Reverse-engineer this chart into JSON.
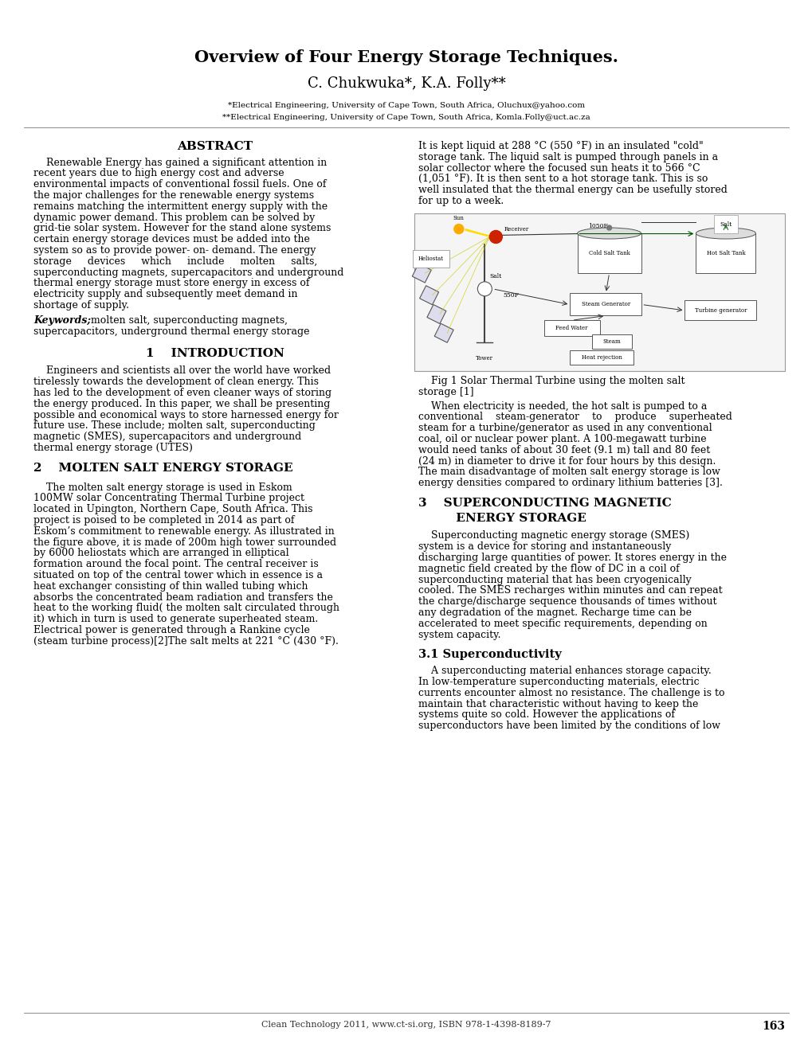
{
  "title": "Overview of Four Energy Storage Techniques.",
  "authors": "C. Chukwuka*, K.A. Folly**",
  "affil1": "*Electrical Engineering, University of Cape Town, South Africa, Oluchux@yahoo.com",
  "affil2": "**Electrical Engineering, University of Cape Town, South Africa, Komla.Folly@uct.ac.za",
  "abstract_heading": "ABSTRACT",
  "keywords_label": "Keywords;",
  "keywords_text": "molten salt, superconducting magnets, supercapacitors, underground thermal energy storage",
  "intro_heading": "1    INTRODUCTION",
  "section2_heading": "2    MOLTEN SALT ENERGY STORAGE",
  "fig_caption_line1": "    Fig 1 Solar Thermal Turbine using the molten salt",
  "fig_caption_line2": "storage [1]",
  "section3_heading1": "3    SUPERCONDUCTING MAGNETIC",
  "section3_heading2": "         ENERGY STORAGE",
  "section31_heading": "3.1 Superconductivity",
  "footer": "Clean Technology 2011, www.ct-si.org, ISBN 978-1-4398-8189-7",
  "page_number": "163",
  "bg_color": "#ffffff",
  "text_color": "#000000",
  "abstract_lines": [
    "    Renewable Energy has gained a significant attention in",
    "recent years due to high energy cost and adverse",
    "environmental impacts of conventional fossil fuels. One of",
    "the major challenges for the renewable energy systems",
    "remains matching the intermittent energy supply with the",
    "dynamic power demand. This problem can be solved by",
    "grid-tie solar system. However for the stand alone systems",
    "certain energy storage devices must be added into the",
    "system so as to provide power- on- demand. The energy",
    "storage     devices     which     include     molten     salts,",
    "superconducting magnets, supercapacitors and underground",
    "thermal energy storage must store energy in excess of",
    "electricity supply and subsequently meet demand in",
    "shortage of supply."
  ],
  "intro_lines": [
    "    Engineers and scientists all over the world have worked",
    "tirelessly towards the development of clean energy. This",
    "has led to the development of even cleaner ways of storing",
    "the energy produced. In this paper, we shall be presenting",
    "possible and economical ways to store harnessed energy for",
    "future use. These include; molten salt, superconducting",
    "magnetic (SMES), supercapacitors and underground",
    "thermal energy storage (UTES)"
  ],
  "section2_lines": [
    "    The molten salt energy storage is used in Eskom",
    "100MW solar Concentrating Thermal Turbine project",
    "located in Upington, Northern Cape, South Africa. This",
    "project is poised to be completed in 2014 as part of",
    "Eskom’s commitment to renewable energy. As illustrated in",
    "the figure above, it is made of 200m high tower surrounded",
    "by 6000 heliostats which are arranged in elliptical",
    "formation around the focal point. The central receiver is",
    "situated on top of the central tower which in essence is a",
    "heat exchanger consisting of thin walled tubing which",
    "absorbs the concentrated beam radiation and transfers the",
    "heat to the working fluid( the molten salt circulated through",
    "it) which in turn is used to generate superheated steam.",
    "Electrical power is generated through a Rankine cycle",
    "(steam turbine process)[2]The salt melts at 221 °C (430 °F)."
  ],
  "right_lines1": [
    "It is kept liquid at 288 °C (550 °F) in an insulated \"cold\"",
    "storage tank. The liquid salt is pumped through panels in a",
    "solar collector where the focused sun heats it to 566 °C",
    "(1,051 °F). It is then sent to a hot storage tank. This is so",
    "well insulated that the thermal energy can be usefully stored",
    "for up to a week."
  ],
  "right_lines2": [
    "    When electricity is needed, the hot salt is pumped to a",
    "conventional    steam-generator    to    produce    superheated",
    "steam for a turbine/generator as used in any conventional",
    "coal, oil or nuclear power plant. A 100-megawatt turbine",
    "would need tanks of about 30 feet (9.1 m) tall and 80 feet",
    "(24 m) in diameter to drive it for four hours by this design.",
    "The main disadvantage of molten salt energy storage is low",
    "energy densities compared to ordinary lithium batteries [3]."
  ],
  "section3_lines": [
    "    Superconducting magnetic energy storage (SMES)",
    "system is a device for storing and instantaneously",
    "discharging large quantities of power. It stores energy in the",
    "magnetic field created by the flow of DC in a coil of",
    "superconducting material that has been cryogenically",
    "cooled. The SMES recharges within minutes and can repeat",
    "the charge/discharge sequence thousands of times without",
    "any degradation of the magnet. Recharge time can be",
    "accelerated to meet specific requirements, depending on",
    "system capacity."
  ],
  "section31_lines": [
    "    A superconducting material enhances storage capacity.",
    "In low-temperature superconducting materials, electric",
    "currents encounter almost no resistance. The challenge is to",
    "maintain that characteristic without having to keep the",
    "systems quite so cold. However the applications of",
    "superconductors have been limited by the conditions of low"
  ]
}
